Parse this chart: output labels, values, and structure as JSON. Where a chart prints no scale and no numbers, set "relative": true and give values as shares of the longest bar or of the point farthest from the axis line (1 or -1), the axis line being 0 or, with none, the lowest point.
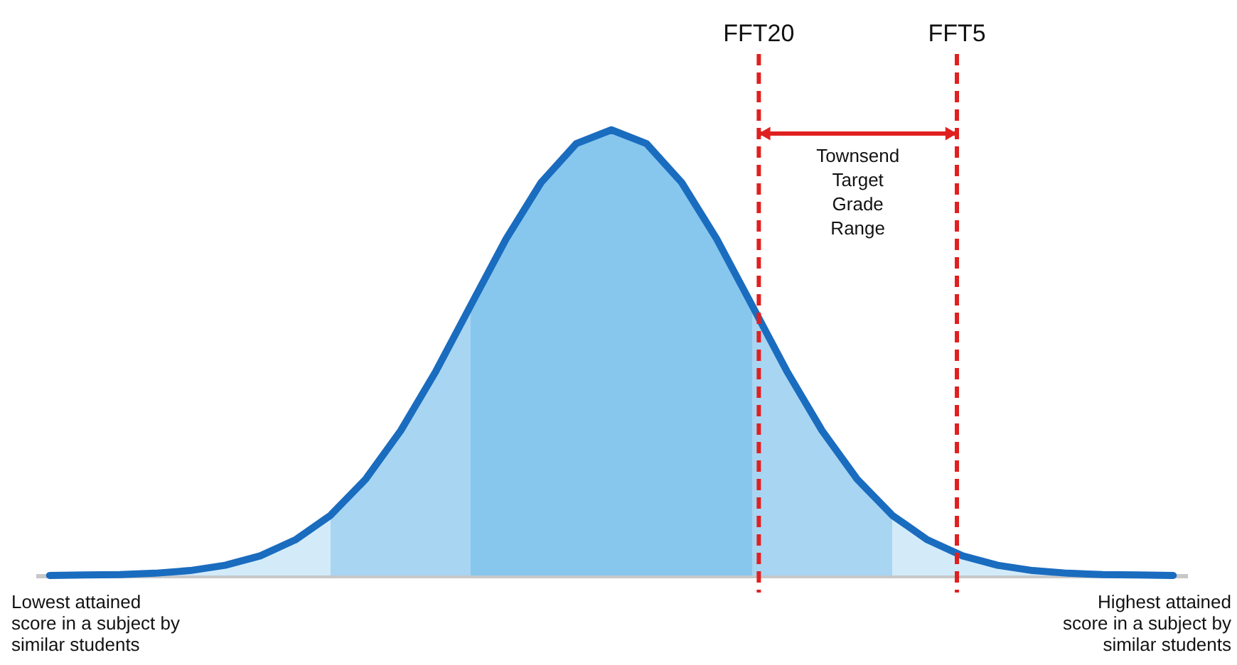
{
  "chart_data": {
    "type": "area",
    "relative": true,
    "categories": [
      null,
      null,
      null,
      null,
      null,
      null,
      null,
      null,
      null,
      null,
      null,
      null,
      null,
      null,
      null,
      null,
      null,
      null,
      null,
      null,
      null,
      null,
      null,
      null,
      null,
      null,
      null,
      null,
      null,
      null,
      null,
      null,
      null
    ],
    "series": [
      {
        "color": "#1a6cbf",
        "values": [
          0,
          0.001,
          0.002,
          0.005,
          0.011,
          0.023,
          0.044,
          0.08,
          0.135,
          0.216,
          0.325,
          0.458,
          0.607,
          0.755,
          0.882,
          0.969,
          1,
          0.969,
          0.882,
          0.755,
          0.607,
          0.458,
          0.325,
          0.216,
          0.135,
          0.08,
          0.044,
          0.023,
          0.011,
          0.005,
          0.002,
          0.001,
          0
        ],
        "colors": [
          "#d3ebf9",
          "#d3ebf9",
          "#d3ebf9",
          "#d3ebf9",
          "#d3ebf9",
          "#d3ebf9",
          "#d3ebf9",
          "#d3ebf9",
          "#a8d5f2",
          "#a8d5f2",
          "#a8d5f2",
          "#a8d5f2",
          "#87c7ee",
          "#87c7ee",
          "#87c7ee",
          "#87c7ee",
          "#87c7ee",
          "#87c7ee",
          "#87c7ee",
          "#87c7ee",
          "#a8d5f2",
          "#a8d5f2",
          "#a8d5f2",
          "#a8d5f2",
          "#d3ebf9",
          "#d3ebf9",
          "#d3ebf9",
          "#d3ebf9",
          "#d3ebf9",
          "#d3ebf9",
          "#d3ebf9",
          "#d3ebf9",
          "#d3ebf9"
        ]
      }
    ],
    "annotations": [
      "FFT20",
      "FFT5",
      "Townsend\nTarget\nGrade\nRange",
      "Lowest attained\nscore in a subject by\nsimilar students",
      "Highest attained\nscore in a subject by\nsimilar students"
    ]
  }
}
